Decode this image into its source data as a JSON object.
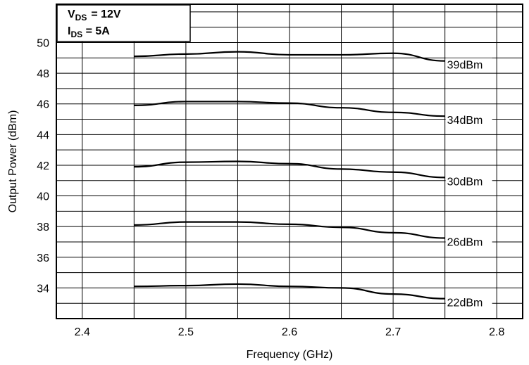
{
  "chart_data": {
    "type": "line",
    "xlabel": "Frequency (GHz)",
    "ylabel": "Output Power (dBm)",
    "xlim": [
      2.375,
      2.825
    ],
    "ylim": [
      32,
      52.5
    ],
    "x_ticks": [
      2.4,
      2.5,
      2.6,
      2.7,
      2.8
    ],
    "y_ticks": [
      34,
      36,
      38,
      40,
      42,
      44,
      46,
      48,
      50
    ],
    "grid": true,
    "conditions": {
      "vds_label": "V",
      "vds_sub": "DS",
      "vds_value": "=  12V",
      "ids_label": "I",
      "ids_sub": "DS",
      "ids_value": " = 5A"
    },
    "series": [
      {
        "name": "39dBm",
        "x": [
          2.45,
          2.5,
          2.55,
          2.6,
          2.65,
          2.7,
          2.75
        ],
        "y": [
          49.1,
          49.25,
          49.4,
          49.2,
          49.2,
          49.3,
          48.8
        ]
      },
      {
        "name": "34dBm",
        "x": [
          2.45,
          2.5,
          2.55,
          2.6,
          2.65,
          2.7,
          2.75
        ],
        "y": [
          45.9,
          46.15,
          46.15,
          46.05,
          45.75,
          45.45,
          45.2
        ]
      },
      {
        "name": "30dBm",
        "x": [
          2.45,
          2.5,
          2.55,
          2.6,
          2.65,
          2.7,
          2.75
        ],
        "y": [
          41.9,
          42.2,
          42.25,
          42.1,
          41.75,
          41.55,
          41.2
        ]
      },
      {
        "name": "26dBm",
        "x": [
          2.45,
          2.5,
          2.55,
          2.6,
          2.65,
          2.7,
          2.75
        ],
        "y": [
          38.1,
          38.3,
          38.3,
          38.15,
          37.95,
          37.6,
          37.25
        ]
      },
      {
        "name": "22dBm",
        "x": [
          2.45,
          2.5,
          2.55,
          2.6,
          2.65,
          2.7,
          2.75
        ],
        "y": [
          34.1,
          34.15,
          34.25,
          34.1,
          34.0,
          33.6,
          33.3
        ]
      }
    ]
  }
}
